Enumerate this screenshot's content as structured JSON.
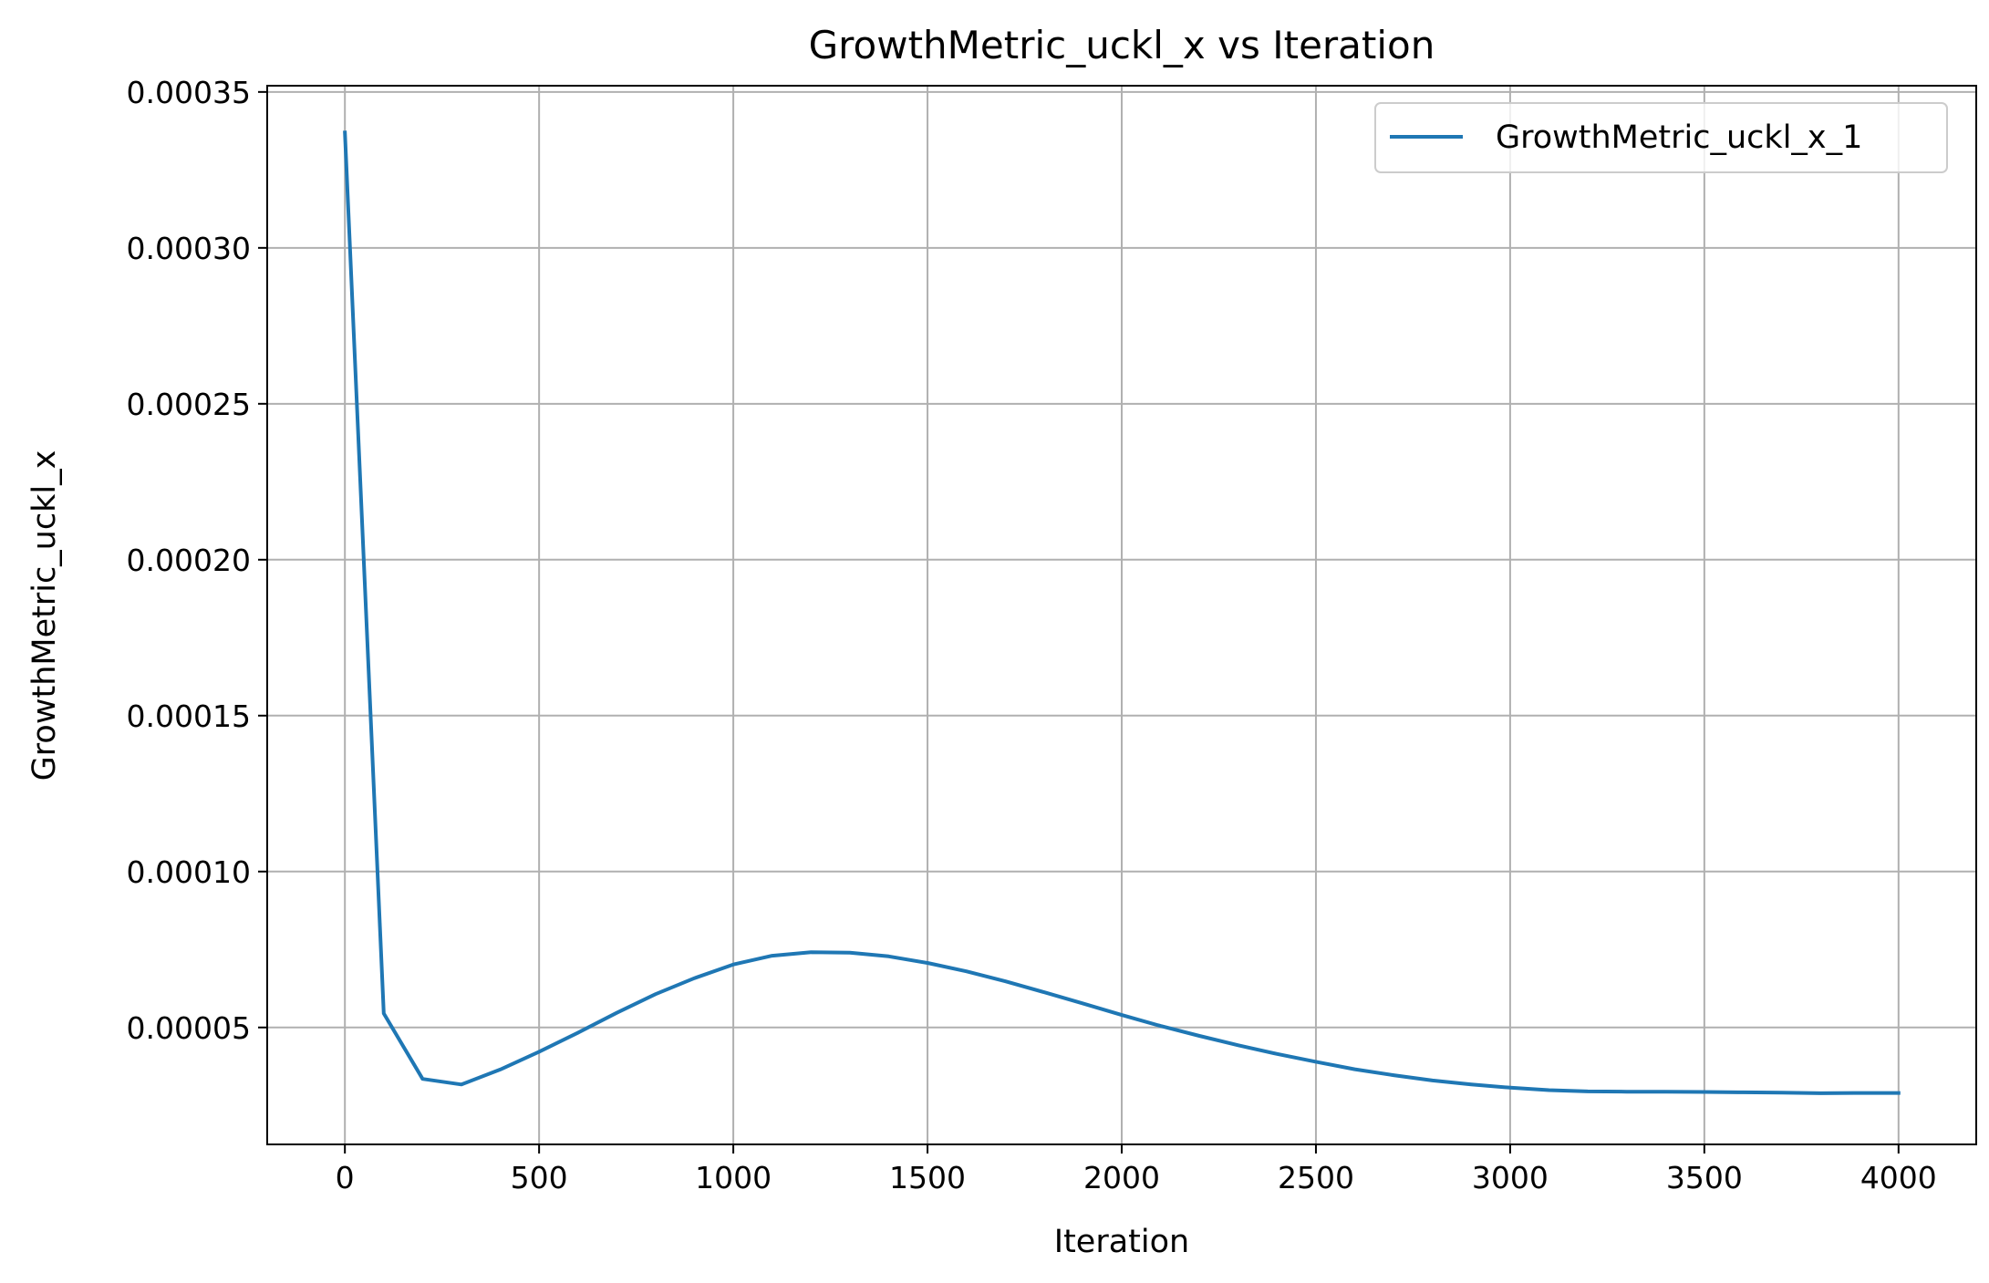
{
  "chart_data": {
    "type": "line",
    "title": "GrowthMetric_uckl_x vs Iteration",
    "xlabel": "Iteration",
    "ylabel": "GrowthMetric_uckl_x",
    "xlim": [
      -200,
      4200
    ],
    "ylim": [
      1.25e-05,
      0.000352
    ],
    "x_ticks": [
      0,
      500,
      1000,
      1500,
      2000,
      2500,
      3000,
      3500,
      4000
    ],
    "x_tick_labels": [
      "0",
      "500",
      "1000",
      "1500",
      "2000",
      "2500",
      "3000",
      "3500",
      "4000"
    ],
    "y_ticks": [
      5e-05,
      0.0001,
      0.00015,
      0.0002,
      0.00025,
      0.0003,
      0.00035
    ],
    "y_tick_labels": [
      "0.00005",
      "0.00010",
      "0.00015",
      "0.00020",
      "0.00025",
      "0.00030",
      "0.00035"
    ],
    "grid": true,
    "legend_position": "top-right",
    "series": [
      {
        "name": "GrowthMetric_uckl_x_1",
        "color": "#1f77b4",
        "x": [
          0,
          100,
          200,
          300,
          400,
          500,
          600,
          700,
          800,
          900,
          1000,
          1100,
          1200,
          1300,
          1400,
          1500,
          1600,
          1700,
          1800,
          1900,
          2000,
          2100,
          2200,
          2300,
          2400,
          2500,
          2600,
          2700,
          2800,
          2900,
          3000,
          3100,
          3200,
          3300,
          3400,
          3500,
          3600,
          3700,
          3800,
          3900,
          4000
        ],
        "y": [
          0.000337,
          5.45e-05,
          3.35e-05,
          3.17e-05,
          3.65e-05,
          4.22e-05,
          4.83e-05,
          5.47e-05,
          6.07e-05,
          6.58e-05,
          7.02e-05,
          7.3e-05,
          7.41e-05,
          7.4e-05,
          7.28e-05,
          7.07e-05,
          6.8e-05,
          6.48e-05,
          6.13e-05,
          5.77e-05,
          5.4e-05,
          5.05e-05,
          4.73e-05,
          4.43e-05,
          4.15e-05,
          3.9e-05,
          3.66e-05,
          3.47e-05,
          3.3e-05,
          3.17e-05,
          3.07e-05,
          2.99e-05,
          2.95e-05,
          2.94e-05,
          2.94e-05,
          2.93e-05,
          2.92e-05,
          2.91e-05,
          2.89e-05,
          2.9e-05,
          2.9e-05
        ]
      }
    ]
  }
}
